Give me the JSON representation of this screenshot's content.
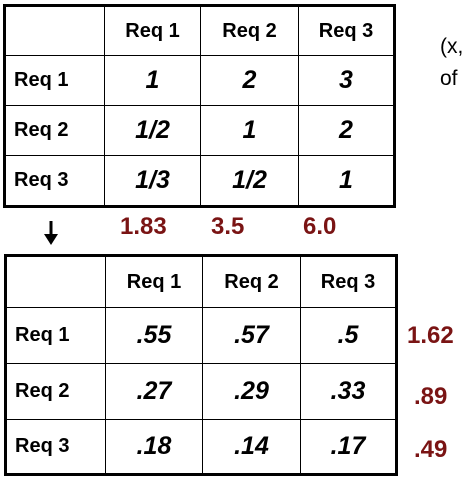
{
  "top_matrix": {
    "headers": [
      "",
      "Req 1",
      "Req 2",
      "Req 3"
    ],
    "rows": [
      {
        "label": "Req 1",
        "values": [
          "1",
          "2",
          "3"
        ]
      },
      {
        "label": "Req 2",
        "values": [
          "1/2",
          "1",
          "2"
        ]
      },
      {
        "label": "Req 3",
        "values": [
          "1/3",
          "1/2",
          "1"
        ]
      }
    ]
  },
  "column_sums": [
    "1.83",
    "3.5",
    "6.0"
  ],
  "bottom_matrix": {
    "headers": [
      "",
      "Req 1",
      "Req 2",
      "Req 3"
    ],
    "rows": [
      {
        "label": "Req 1",
        "values": [
          ".55",
          ".57",
          ".5"
        ]
      },
      {
        "label": "Req 2",
        "values": [
          ".27",
          ".29",
          ".33"
        ]
      },
      {
        "label": "Req 3",
        "values": [
          ".18",
          ".14",
          ".17"
        ]
      }
    ]
  },
  "row_sums": [
    "1.62",
    ".89",
    ".49"
  ],
  "side_text": [
    "(x,",
    "of"
  ],
  "colors": {
    "sum_color": "#7a1414",
    "border": "#000000"
  },
  "icons": {
    "down_arrow": "arrow-down-icon"
  }
}
